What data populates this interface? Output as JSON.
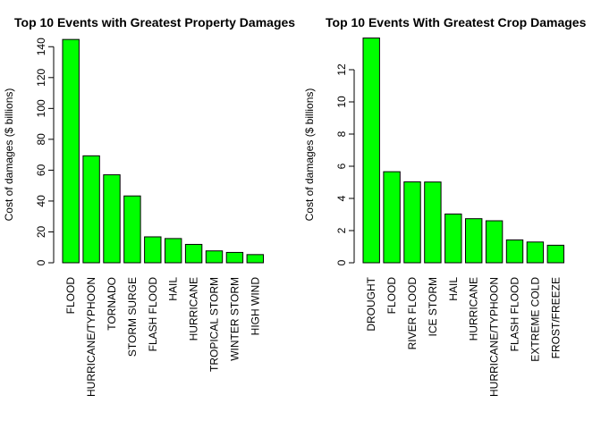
{
  "chart_data": [
    {
      "type": "bar",
      "title": "Top 10 Events with Greatest Property Damages",
      "xlabel": "",
      "ylabel": "Cost of damages ($ billions)",
      "ylim": [
        0,
        150
      ],
      "yticks": [
        0,
        20,
        40,
        60,
        80,
        100,
        120,
        140
      ],
      "bar_color": "#00ff00",
      "categories": [
        "FLOOD",
        "HURRICANE/TYPHOON",
        "TORNADO",
        "STORM SURGE",
        "FLASH FLOOD",
        "HAIL",
        "HURRICANE",
        "TROPICAL STORM",
        "WINTER STORM",
        "HIGH WIND"
      ],
      "values": [
        144.7,
        69.3,
        57.0,
        43.3,
        16.8,
        15.7,
        11.9,
        7.7,
        6.7,
        5.3
      ]
    },
    {
      "type": "bar",
      "title": "Top 10 Events With Greatest Crop Damages",
      "xlabel": "",
      "ylabel": "Cost of damages ($ billions)",
      "ylim": [
        0,
        14
      ],
      "yticks": [
        0,
        2,
        4,
        6,
        8,
        10,
        12
      ],
      "bar_color": "#00ff00",
      "categories": [
        "DROUGHT",
        "FLOOD",
        "RIVER FLOOD",
        "ICE STORM",
        "HAIL",
        "HURRICANE",
        "HURRICANE/TYPHOON",
        "FLASH FLOOD",
        "EXTREME COLD",
        "FROST/FREEZE"
      ],
      "values": [
        13.97,
        5.66,
        5.03,
        5.02,
        3.03,
        2.74,
        2.61,
        1.42,
        1.29,
        1.09
      ]
    }
  ]
}
